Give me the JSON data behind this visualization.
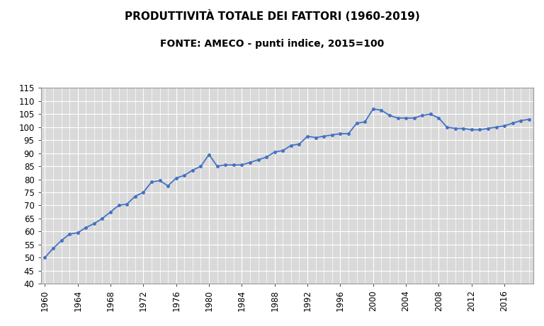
{
  "title_line1": "PRODUTTIVITÀ TOTALE DEI FATTORI (1960-2019)",
  "title_line2": "FONTE: AMECO - punti indice, 2015=100",
  "years": [
    1960,
    1961,
    1962,
    1963,
    1964,
    1965,
    1966,
    1967,
    1968,
    1969,
    1970,
    1971,
    1972,
    1973,
    1974,
    1975,
    1976,
    1977,
    1978,
    1979,
    1980,
    1981,
    1982,
    1983,
    1984,
    1985,
    1986,
    1987,
    1988,
    1989,
    1990,
    1991,
    1992,
    1993,
    1994,
    1995,
    1996,
    1997,
    1998,
    1999,
    2000,
    2001,
    2002,
    2003,
    2004,
    2005,
    2006,
    2007,
    2008,
    2009,
    2010,
    2011,
    2012,
    2013,
    2014,
    2015,
    2016,
    2017,
    2018,
    2019
  ],
  "values": [
    50.0,
    53.5,
    56.5,
    59.0,
    59.5,
    61.5,
    63.0,
    65.0,
    67.5,
    70.0,
    70.5,
    73.5,
    75.0,
    79.0,
    79.5,
    77.5,
    80.5,
    81.5,
    83.5,
    85.0,
    89.5,
    85.0,
    85.5,
    85.5,
    85.5,
    86.5,
    87.5,
    88.5,
    90.5,
    91.0,
    93.0,
    93.5,
    96.5,
    96.0,
    96.5,
    97.0,
    97.5,
    97.5,
    101.5,
    102.0,
    107.0,
    106.5,
    104.5,
    103.5,
    103.5,
    103.5,
    104.5,
    105.0,
    103.5,
    100.0,
    99.5,
    99.5,
    99.0,
    99.0,
    99.5,
    100.0,
    100.5,
    101.5,
    102.5,
    103.0
  ],
  "line_color": "#4472C4",
  "marker": "o",
  "marker_size": 2.5,
  "line_width": 1.3,
  "bg_color": "#D9D9D9",
  "ylim": [
    40,
    115
  ],
  "yticks": [
    40,
    45,
    50,
    55,
    60,
    65,
    70,
    75,
    80,
    85,
    90,
    95,
    100,
    105,
    110,
    115
  ],
  "xticks": [
    1960,
    1964,
    1968,
    1972,
    1976,
    1980,
    1984,
    1988,
    1992,
    1996,
    2000,
    2004,
    2008,
    2012,
    2016
  ],
  "grid_color": "#FFFFFF",
  "title_fontsize": 11,
  "subtitle_fontsize": 10,
  "tick_fontsize": 8.5,
  "fig_bg": "#FFFFFF"
}
